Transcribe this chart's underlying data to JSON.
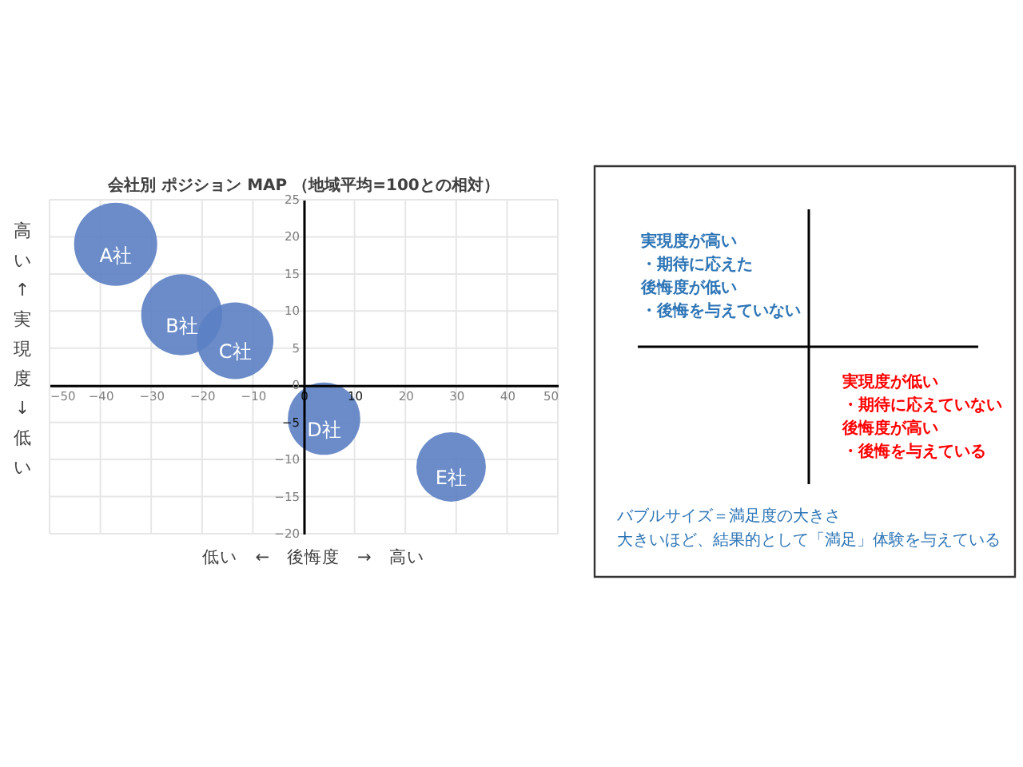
{
  "chart_data": [
    {
      "type": "bubble",
      "title": "会社別 ポジション MAP （地域平均=100との相対）",
      "xlabel": "低い　←　後悔度　→　高い",
      "ylabel": "高い　↑　実現度　↓　低い",
      "series": [
        {
          "name": "A社",
          "color": "#5b7fc3",
          "x": [
            -37
          ],
          "values": [
            19
          ],
          "sizes": [
            1
          ]
        },
        {
          "name": "B社",
          "color": "#5b7fc3",
          "x": [
            -24
          ],
          "values": [
            9.5
          ],
          "sizes": [
            0.95
          ]
        },
        {
          "name": "C社",
          "color": "#5b7fc3",
          "x": [
            -13.5
          ],
          "values": [
            6
          ],
          "sizes": [
            0.85
          ]
        },
        {
          "name": "D社",
          "color": "#5b7fc3",
          "x": [
            4
          ],
          "values": [
            -4.5
          ],
          "sizes": [
            0.76
          ]
        },
        {
          "name": "E社",
          "color": "#5b7fc3",
          "x": [
            29
          ],
          "values": [
            -11
          ],
          "sizes": [
            0.7
          ]
        }
      ],
      "xlim": [
        -50,
        50
      ],
      "ylim": [
        -20,
        25
      ],
      "xticks": [
        -50,
        -40,
        -30,
        -20,
        -10,
        0,
        10,
        20,
        30,
        40,
        50
      ],
      "yticks": [
        -20,
        -15,
        -10,
        -5,
        0,
        5,
        10,
        15,
        20,
        25
      ],
      "grid": true
    },
    {
      "type": "other",
      "annotations": [
        "実現度が高い",
        "・期待に応えた",
        "後悔度が低い",
        "・後悔を与えていない",
        "実現度が低い",
        "・期待に応えていない",
        "後悔度が高い",
        "・後悔を与えている",
        "バブルサイズ＝満足度の大きさ",
        "大きいほど、結果的として「満足」体験を与えている"
      ],
      "colors": [
        "#2e75b6",
        "#2e75b6",
        "#2e75b6",
        "#2e75b6",
        "#ff0000",
        "#ff0000",
        "#ff0000",
        "#ff0000",
        "#2e75b6",
        "#2e75b6"
      ]
    }
  ]
}
